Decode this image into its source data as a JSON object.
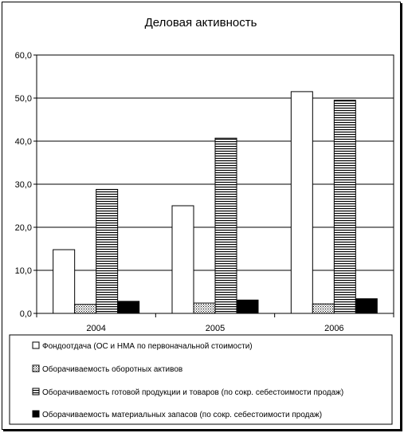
{
  "chart_data": {
    "type": "bar",
    "title": "Деловая активность",
    "categories": [
      "2004",
      "2005",
      "2006"
    ],
    "ylim": [
      0,
      60
    ],
    "yticks": [
      "0,0",
      "10,0",
      "20,0",
      "30,0",
      "40,0",
      "50,0",
      "60,0"
    ],
    "grid": true,
    "legend_position": "bottom",
    "series": [
      {
        "name": "Фондоотдача (ОС и НМА по первоначальной стоимости)",
        "pattern": "white",
        "values": [
          14.8,
          25.0,
          51.5
        ]
      },
      {
        "name": "Оборачиваемость оборотных активов",
        "pattern": "dots",
        "values": [
          2.1,
          2.4,
          2.2
        ]
      },
      {
        "name": "Оборачиваемость готовой продукции и товаров (по сокр. себестоимости продаж)",
        "pattern": "hstripes",
        "values": [
          28.8,
          40.7,
          49.5
        ]
      },
      {
        "name": "Оборачиваемость материальных запасов (по сокр. себестоимости продаж)",
        "pattern": "black",
        "values": [
          2.8,
          3.1,
          3.4
        ]
      }
    ]
  }
}
